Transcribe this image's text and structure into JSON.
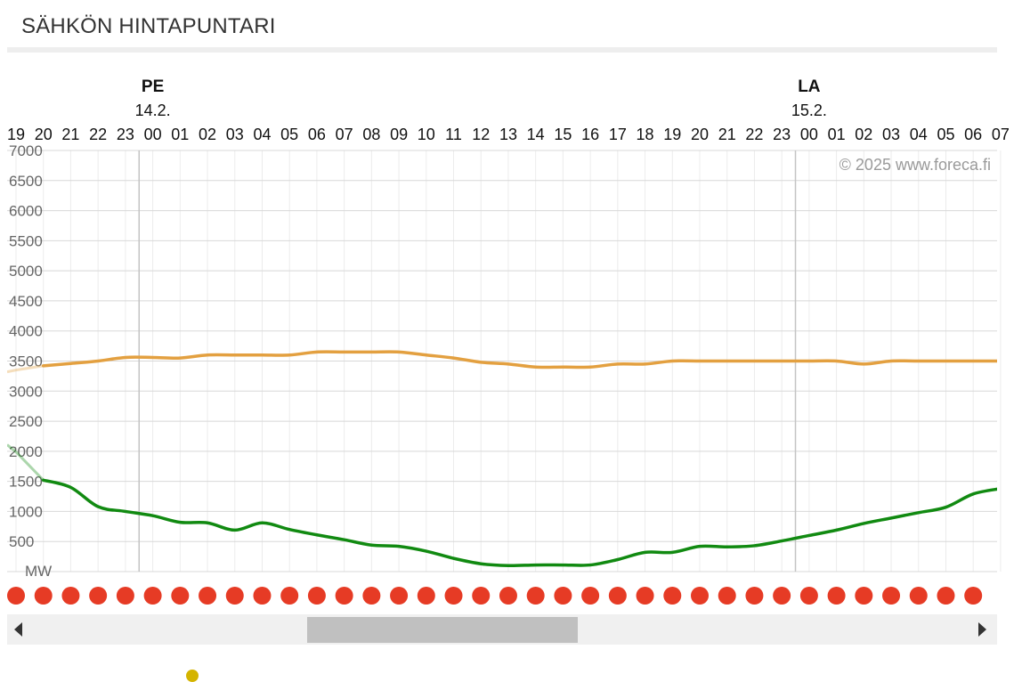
{
  "page": {
    "title": "SÄHKÖN HINTAPUNTARI"
  },
  "chart_data": {
    "type": "line",
    "copyright": "© 2025 www.foreca.fi",
    "y_unit_label": "MW",
    "ylim": [
      0,
      7000
    ],
    "y_ticks": [
      500,
      1000,
      1500,
      2000,
      2500,
      3000,
      3500,
      4000,
      4500,
      5000,
      5500,
      6000,
      6500,
      7000
    ],
    "x_tick_labels": [
      "19",
      "20",
      "21",
      "22",
      "23",
      "00",
      "01",
      "02",
      "03",
      "04",
      "05",
      "06",
      "07",
      "08",
      "09",
      "10",
      "11",
      "12",
      "13",
      "14",
      "15",
      "16",
      "17",
      "18",
      "19",
      "20",
      "21",
      "22",
      "23",
      "00",
      "01",
      "02",
      "03",
      "04",
      "05",
      "06",
      "07"
    ],
    "days": [
      {
        "name": "PE",
        "date": "14.2.",
        "hour_index": 5
      },
      {
        "name": "LA",
        "date": "15.2.",
        "hour_index": 29
      }
    ],
    "grid": true,
    "series": [
      {
        "color": "#e3a040",
        "values": [
          3350,
          3420,
          3460,
          3500,
          3560,
          3560,
          3550,
          3600,
          3600,
          3600,
          3600,
          3650,
          3650,
          3650,
          3650,
          3600,
          3550,
          3480,
          3450,
          3400,
          3400,
          3400,
          3450,
          3450,
          3500,
          3500,
          3500,
          3500,
          3500,
          3500,
          3500,
          3450,
          3500,
          3500,
          3500,
          3500,
          3500
        ]
      },
      {
        "color": "#118a11",
        "values": [
          1990,
          1520,
          1400,
          1080,
          1000,
          930,
          820,
          810,
          690,
          810,
          700,
          610,
          530,
          440,
          420,
          340,
          220,
          130,
          100,
          110,
          110,
          110,
          200,
          320,
          320,
          420,
          410,
          430,
          510,
          600,
          690,
          800,
          890,
          980,
          1070,
          1290,
          1380
        ]
      }
    ],
    "markers": {
      "color": "#e63b25",
      "count": 36
    }
  }
}
